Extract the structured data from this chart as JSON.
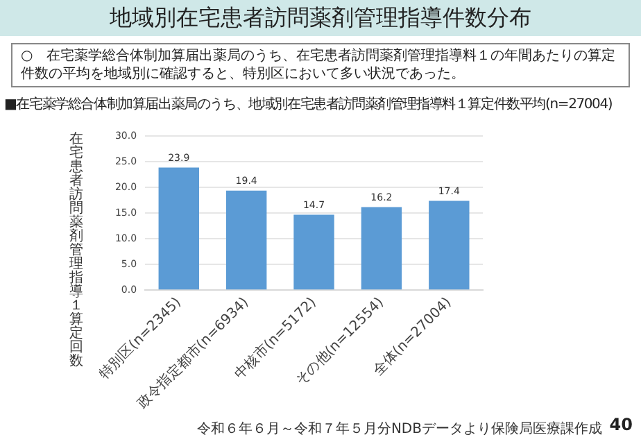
{
  "chart_data": {
    "type": "bar",
    "title": "地域別在宅患者訪問薬剤管理指導件数分布",
    "subtitle": "■在宅薬学総合体制加算届出薬局のうち、地域別在宅患者訪問薬剤管理指導料１算定件数平均(n=27004)",
    "ylabel": "在宅患者訪問薬剤管理指導１算定回数",
    "categories": [
      "特別区(n=2345)",
      "政令指定都市(n=6934)",
      "中核市(n=5172)",
      "その他(n=12554)",
      "全体(n=27004)"
    ],
    "values": [
      23.9,
      19.4,
      14.7,
      16.2,
      17.4
    ],
    "color": "#5b9bd5",
    "ylim": [
      0,
      30
    ],
    "yticks": [
      {
        "value": 0,
        "label": "0.0"
      },
      {
        "value": 5,
        "label": "5.0"
      },
      {
        "value": 10,
        "label": "10.0"
      },
      {
        "value": 15,
        "label": "15.0"
      },
      {
        "value": 20,
        "label": "20.0"
      },
      {
        "value": 25,
        "label": "25.0"
      },
      {
        "value": 30,
        "label": "30.0"
      }
    ],
    "grid": "y",
    "data_labels": true,
    "annotations": [
      "○　在宅薬学総合体制加算届出薬局のうち、在宅患者訪問薬剤管理指導料１の年間あたりの算定件数の平均を地域別に確認すると、特別区において多い状況であった。",
      "令和６年６月～令和７年５月分NDBデータより保険局医療課作成",
      "40"
    ]
  }
}
